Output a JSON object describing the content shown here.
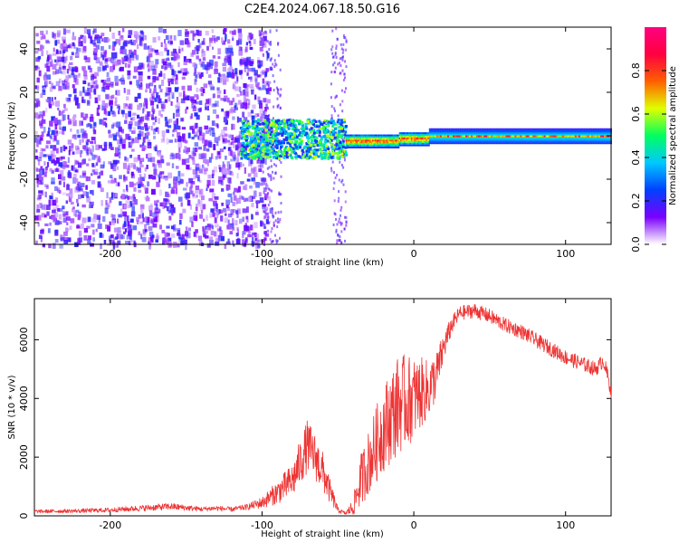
{
  "title": "C2E4.2024.067.18.50.G16",
  "chart_data": [
    {
      "type": "heatmap",
      "xlabel": "Height of straight line (km)",
      "ylabel": "Frequency (Hz)",
      "xlim": [
        -250,
        130
      ],
      "ylim": [
        -50,
        50
      ],
      "xticks": [
        -200,
        -100,
        0,
        100
      ],
      "yticks": [
        -40,
        -20,
        0,
        20,
        40
      ],
      "colorbar": {
        "label": "Normalized spectral amplitude",
        "range": [
          0,
          1
        ],
        "ticks": [
          "0.0",
          "0.2",
          "0.4",
          "0.6",
          "0.8"
        ],
        "colormap": [
          "#ffffff",
          "#7a00ff",
          "#0040ff",
          "#00c8ff",
          "#00ff60",
          "#e0ff00",
          "#ff6000",
          "#ff0040",
          "#ff0080"
        ]
      },
      "regions": [
        {
          "x": [
            -250,
            -100
          ],
          "description": "scattered noise",
          "level": 0.15
        },
        {
          "x": [
            -115,
            -45
          ],
          "freq_band": [
            -10,
            8
          ],
          "level": 0.45
        },
        {
          "x": [
            -45,
            10
          ],
          "freq_band": [
            -3,
            3
          ],
          "level": 0.8
        },
        {
          "x": [
            10,
            130
          ],
          "freq_band": [
            -2,
            3
          ],
          "level": 0.6
        }
      ]
    },
    {
      "type": "line",
      "xlabel": "Height of straight line (km)",
      "ylabel": "SNR (10 * v/v)",
      "xlim": [
        -250,
        130
      ],
      "ylim": [
        0,
        7400
      ],
      "xticks": [
        -200,
        -100,
        0,
        100
      ],
      "yticks": [
        0,
        2000,
        4000,
        6000
      ],
      "color": "#ee3333",
      "series": [
        {
          "x": [
            -250,
            -220,
            -200,
            -180,
            -160,
            -140,
            -130,
            -120,
            -110,
            -100,
            -90,
            -80,
            -75,
            -70,
            -65,
            -60,
            -55,
            -50,
            -45,
            -40,
            -35,
            -30,
            -25,
            -20,
            -15,
            -10,
            -5,
            0,
            5,
            10,
            15,
            20,
            25,
            30,
            40,
            50,
            60,
            70,
            80,
            90,
            100,
            110,
            120,
            125,
            130
          ],
          "y": [
            150,
            170,
            200,
            260,
            320,
            230,
            260,
            220,
            300,
            450,
            800,
            1200,
            1800,
            2400,
            2000,
            1500,
            800,
            200,
            80,
            300,
            1200,
            1800,
            2400,
            3000,
            3400,
            3800,
            3900,
            4000,
            4200,
            4300,
            4800,
            5800,
            6500,
            6900,
            7000,
            6800,
            6500,
            6300,
            6000,
            5700,
            5400,
            5200,
            5000,
            5300,
            4300
          ],
          "noise": [
            60,
            70,
            80,
            100,
            120,
            80,
            90,
            80,
            100,
            200,
            400,
            600,
            800,
            900,
            800,
            700,
            400,
            100,
            50,
            300,
            900,
            1100,
            1300,
            1500,
            1600,
            1700,
            1600,
            1400,
            1200,
            1000,
            800,
            500,
            300,
            250,
            250,
            250,
            250,
            250,
            250,
            250,
            250,
            250,
            250,
            250,
            300
          ]
        }
      ]
    }
  ]
}
